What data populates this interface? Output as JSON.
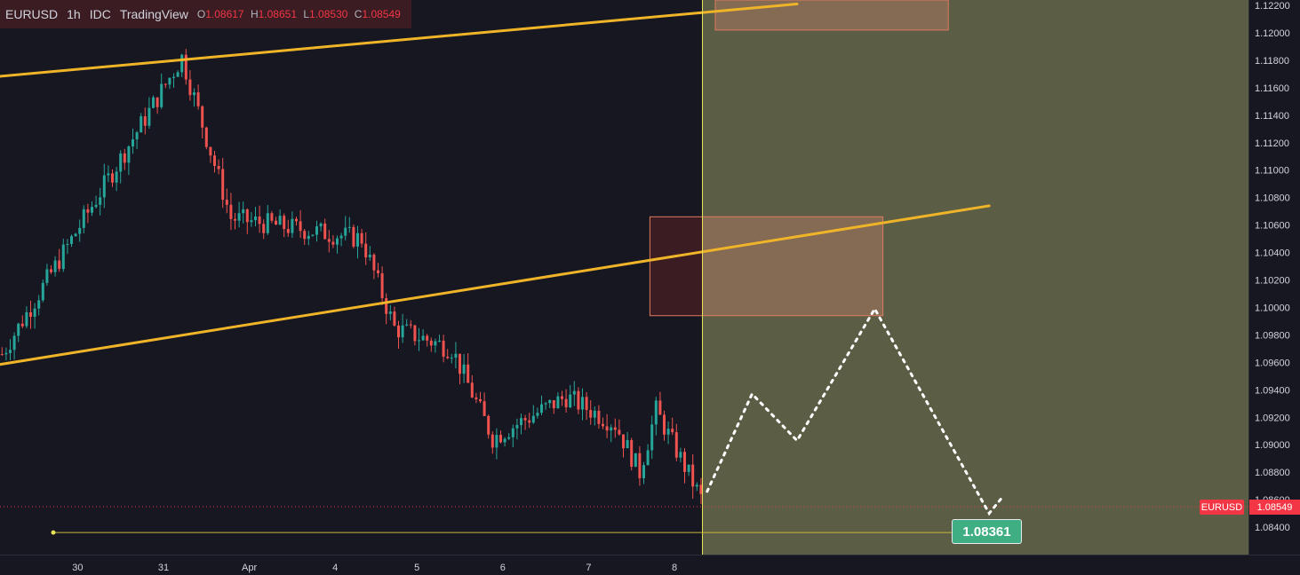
{
  "legend": {
    "symbol": "EURUSD",
    "interval": "1h",
    "exchange": "IDC",
    "source": "TradingView",
    "open_label": "O",
    "open": "1.08617",
    "high_label": "H",
    "high": "1.08651",
    "low_label": "L",
    "low": "1.08530",
    "close_label": "C",
    "close": "1.08549"
  },
  "colors": {
    "background": "#171721",
    "up": "#26a69a",
    "down": "#ef5350",
    "trendline": "#f0b429",
    "zone_fill": "#8a6b55",
    "zone_border": "#e07a5f",
    "projection_bg": "#5b5e45",
    "target_label": "#3fae82",
    "price_badge": "#f23645"
  },
  "badges": {
    "symbol": "EURUSD",
    "last_price": "1.08549",
    "target": "1.08361"
  },
  "chart_data": {
    "type": "candlestick",
    "symbol": "EURUSD",
    "timeframe": "1h",
    "y_ticks": [
      "1.12200",
      "1.12000",
      "1.11800",
      "1.11600",
      "1.11400",
      "1.11200",
      "1.11000",
      "1.10800",
      "1.10600",
      "1.10400",
      "1.10200",
      "1.10000",
      "1.09800",
      "1.09600",
      "1.09400",
      "1.09200",
      "1.09000",
      "1.08800",
      "1.08600",
      "1.08400"
    ],
    "ylim": [
      1.0825,
      1.1225
    ],
    "x_ticks": [
      "30",
      "31",
      "Apr",
      "4",
      "5",
      "6",
      "7",
      "8"
    ],
    "last_price": 1.08549,
    "target_price": 1.08361,
    "trendlines": [
      {
        "name": "upper-channel",
        "from": [
          -1,
          1.1168
        ],
        "to": [
          195,
          1.1221
        ]
      },
      {
        "name": "lower-channel",
        "from": [
          -1,
          1.0958
        ],
        "to": [
          242,
          1.1074
        ]
      }
    ],
    "zones": [
      {
        "name": "upper-supply-zone",
        "x0": 175,
        "x1": 232,
        "top": 1.1225,
        "bottom": 1.1202
      },
      {
        "name": "middle-supply-zone",
        "x0": 159,
        "x1": 216,
        "top": 1.1066,
        "bottom": 1.0994
      }
    ],
    "projection_path": [
      [
        173,
        1.0866
      ],
      [
        184,
        1.0937
      ],
      [
        195,
        1.0903
      ],
      [
        214,
        1.0999
      ],
      [
        242,
        1.085
      ],
      [
        245,
        1.0861
      ]
    ],
    "path_nodes": [
      {
        "name": "channel-start",
        "x": 0,
        "y": 1.0966,
        "r": 1.0975
      },
      {
        "name": "rally-top",
        "x": 44,
        "y": 1.1182,
        "r": 1.117
      },
      {
        "name": "drop-1",
        "x": 56,
        "y": 1.1065,
        "r": 1.107
      },
      {
        "name": "range-1",
        "x": 88,
        "y": 1.105,
        "r": 1.105
      },
      {
        "name": "drop-2",
        "x": 96,
        "y": 1.0985,
        "r": 1.0985
      },
      {
        "name": "range-2",
        "x": 110,
        "y": 1.097,
        "r": 1.0975
      },
      {
        "name": "drop-3",
        "x": 120,
        "y": 1.0905,
        "r": 1.0905
      },
      {
        "name": "bounce",
        "x": 138,
        "y": 1.0935,
        "r": 1.0935
      },
      {
        "name": "range-3",
        "x": 150,
        "y": 1.0915,
        "r": 1.0915
      },
      {
        "name": "dip",
        "x": 156,
        "y": 1.088,
        "r": 1.09
      },
      {
        "name": "bounce-2",
        "x": 160,
        "y": 1.0925,
        "r": 1.093
      },
      {
        "name": "end",
        "x": 172,
        "y": 1.0855,
        "r": 1.086
      }
    ]
  }
}
